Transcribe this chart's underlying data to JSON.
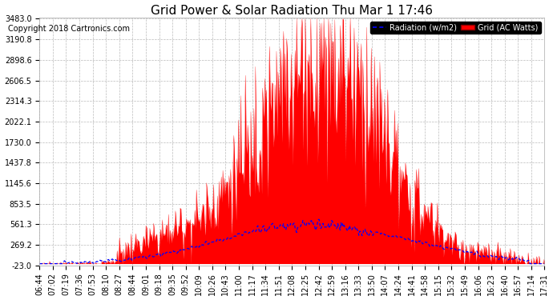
{
  "title": "Grid Power & Solar Radiation Thu Mar 1 17:46",
  "copyright": "Copyright 2018 Cartronics.com",
  "legend_labels": [
    "Radiation (w/m2)",
    "Grid (AC Watts)"
  ],
  "legend_colors": [
    "#0000ff",
    "#ff0000"
  ],
  "background_color": "#ffffff",
  "plot_bg_color": "#ffffff",
  "grid_color": "#c0c0c0",
  "red_fill_color": "#ff0000",
  "blue_line_color": "#0000ff",
  "ymin": -23.0,
  "ymax": 3483.0,
  "yticks": [
    -23.0,
    269.2,
    561.3,
    853.5,
    1145.6,
    1437.8,
    1730.0,
    2022.1,
    2314.3,
    2606.5,
    2898.6,
    3190.8,
    3483.0
  ],
  "xtick_labels": [
    "06:44",
    "07:02",
    "07:19",
    "07:36",
    "07:53",
    "08:10",
    "08:27",
    "08:44",
    "09:01",
    "09:18",
    "09:35",
    "09:52",
    "10:09",
    "10:26",
    "10:43",
    "11:00",
    "11:17",
    "11:34",
    "11:51",
    "12:08",
    "12:25",
    "12:42",
    "12:59",
    "13:16",
    "13:33",
    "13:50",
    "14:07",
    "14:24",
    "14:41",
    "14:58",
    "15:15",
    "15:32",
    "15:49",
    "16:06",
    "16:23",
    "16:40",
    "16:57",
    "17:14",
    "17:31"
  ],
  "title_fontsize": 11,
  "axis_fontsize": 7,
  "copyright_fontsize": 7
}
